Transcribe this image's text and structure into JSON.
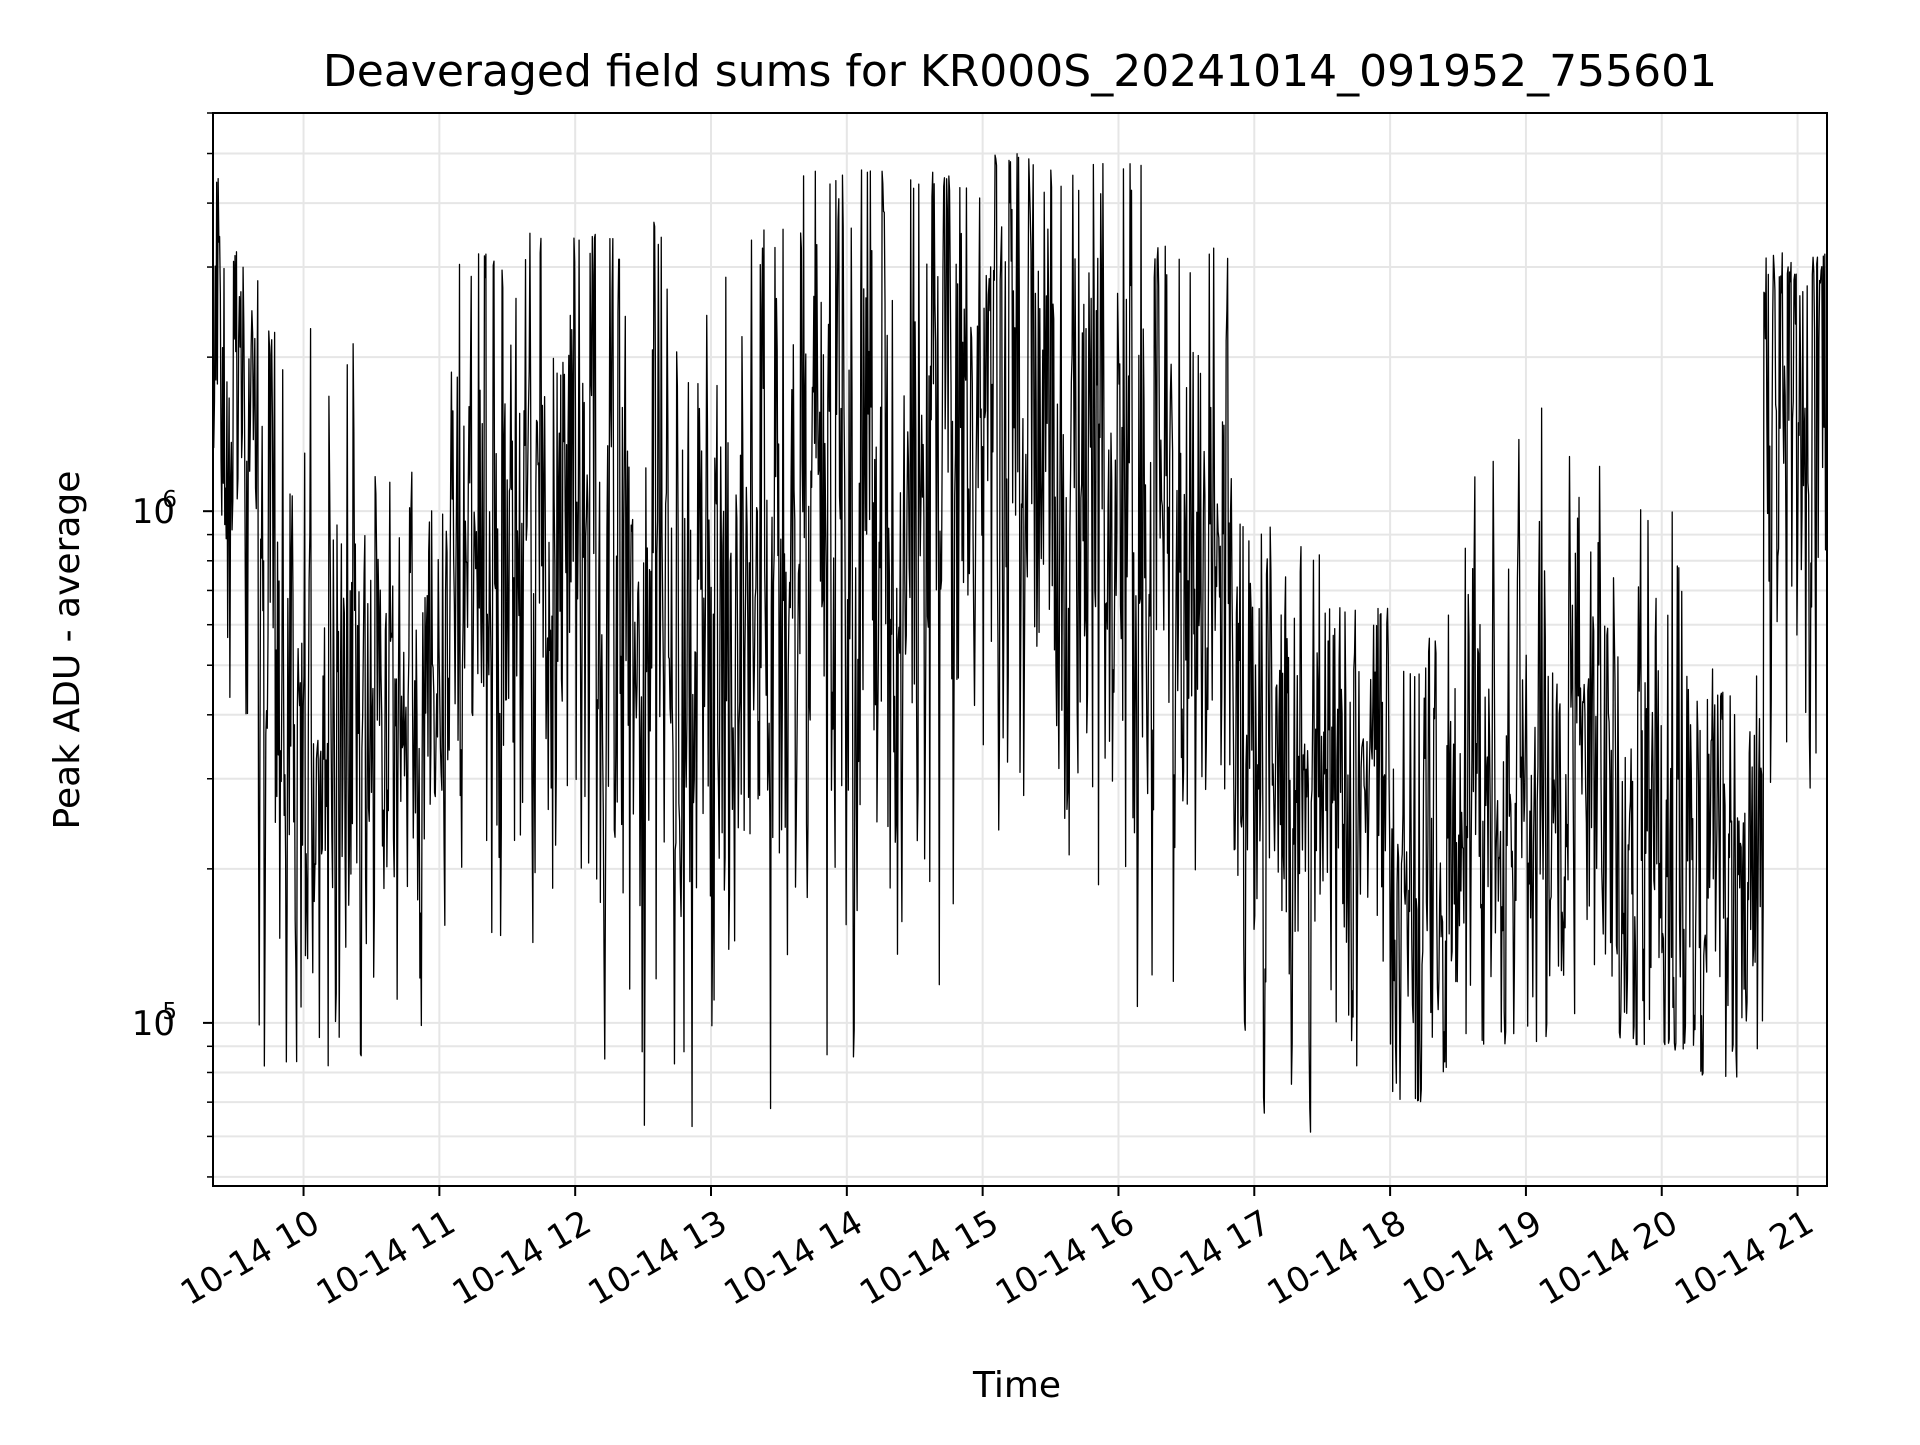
{
  "chart_data": {
    "type": "line",
    "title": "Deaveraged field sums for KR000S_20241014_091952_755601",
    "xlabel": "Time",
    "ylabel": "Peak ADU - average",
    "x_tick_labels": [
      "10-14 10",
      "10-14 11",
      "10-14 12",
      "10-14 13",
      "10-14 14",
      "10-14 15",
      "10-14 16",
      "10-14 17",
      "10-14 18",
      "10-14 19",
      "10-14 20",
      "10-14 21"
    ],
    "y_tick_labels": [
      {
        "base": "10",
        "exp": "5",
        "value": 100000
      },
      {
        "base": "10",
        "exp": "6",
        "value": 1000000
      }
    ],
    "x_range": [
      "2024-10-14 09:20",
      "2024-10-14 21:13"
    ],
    "y_range": [
      48000,
      6000000
    ],
    "y_scale": "log",
    "grid": true,
    "line_color": "#000000",
    "grid_color": "#e6e6e6",
    "approx_segments": [
      {
        "start": "09:20",
        "end": "09:40",
        "center": 1700000,
        "low": 400000,
        "high": 4600000
      },
      {
        "start": "09:40",
        "end": "10:30",
        "center": 380000,
        "low": 82000,
        "high": 2300000
      },
      {
        "start": "10:30",
        "end": "11:00",
        "center": 420000,
        "low": 95000,
        "high": 1200000
      },
      {
        "start": "11:00",
        "end": "11:40",
        "center": 750000,
        "low": 75000,
        "high": 3200000
      },
      {
        "start": "11:40",
        "end": "12:20",
        "center": 800000,
        "low": 85000,
        "high": 3500000
      },
      {
        "start": "12:20",
        "end": "13:00",
        "center": 700000,
        "low": 62000,
        "high": 3800000
      },
      {
        "start": "13:00",
        "end": "13:40",
        "center": 750000,
        "low": 64000,
        "high": 3700000
      },
      {
        "start": "13:40",
        "end": "14:20",
        "center": 900000,
        "low": 85000,
        "high": 4700000
      },
      {
        "start": "14:20",
        "end": "14:50",
        "center": 800000,
        "low": 63000,
        "high": 4600000
      },
      {
        "start": "14:50",
        "end": "15:30",
        "center": 1300000,
        "low": 120000,
        "high": 5000000
      },
      {
        "start": "15:30",
        "end": "16:10",
        "center": 1000000,
        "low": 95000,
        "high": 4800000
      },
      {
        "start": "16:10",
        "end": "16:50",
        "center": 900000,
        "low": 120000,
        "high": 3300000
      },
      {
        "start": "16:50",
        "end": "17:30",
        "center": 330000,
        "low": 60000,
        "high": 950000
      },
      {
        "start": "17:30",
        "end": "18:00",
        "center": 290000,
        "low": 68000,
        "high": 650000
      },
      {
        "start": "18:00",
        "end": "18:30",
        "center": 180000,
        "low": 70000,
        "high": 1400000
      },
      {
        "start": "18:30",
        "end": "19:30",
        "center": 270000,
        "low": 90000,
        "high": 1600000
      },
      {
        "start": "19:30",
        "end": "20:15",
        "center": 240000,
        "low": 88000,
        "high": 1500000
      },
      {
        "start": "20:15",
        "end": "20:45",
        "center": 190000,
        "low": 78000,
        "high": 700000
      },
      {
        "start": "20:45",
        "end": "21:13",
        "center": 1500000,
        "low": 110000,
        "high": 3200000
      }
    ]
  }
}
